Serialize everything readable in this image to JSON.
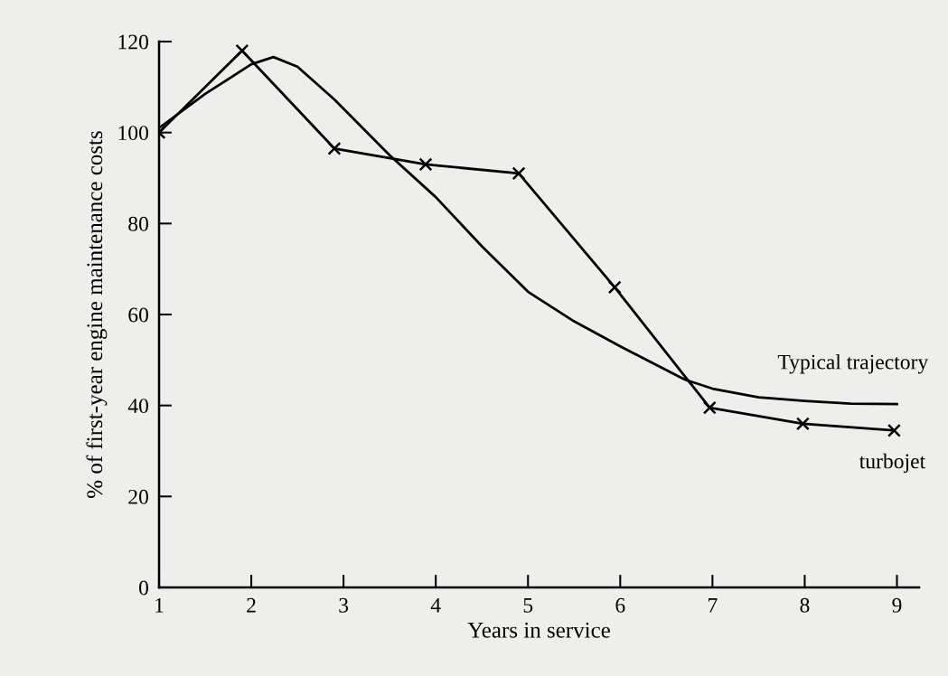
{
  "chart_data": {
    "type": "line",
    "xlabel": "Years in service",
    "ylabel": "% of first-year engine maintenance costs",
    "xlim": [
      1,
      9.24
    ],
    "xticks": [
      1,
      2,
      3,
      4,
      5,
      6,
      7,
      8,
      9
    ],
    "ylim": [
      0,
      120
    ],
    "yticks": [
      0,
      20,
      40,
      60,
      80,
      100,
      120
    ],
    "grid": false,
    "legend": false,
    "line_style": "solid",
    "series": [
      {
        "name": "Typical trajectory",
        "color": "#000000",
        "marker": "none",
        "x": [
          1,
          1.5,
          2,
          2.24,
          2.5,
          2.9,
          3.5,
          4,
          4.5,
          5,
          5.5,
          6,
          6.7,
          7,
          7.5,
          8,
          8.5,
          9
        ],
        "values": [
          101,
          108.5,
          115,
          116.6,
          114.5,
          107.3,
          95,
          85.8,
          75,
          65,
          58.5,
          53,
          45.7,
          43.7,
          41.8,
          41,
          40.4,
          40.3
        ]
      },
      {
        "name": "turbojet",
        "color": "#000000",
        "marker": "cross",
        "x": [
          1,
          1.9,
          2.9,
          3.89,
          4.9,
          5.94,
          6.97,
          7.98,
          8.97
        ],
        "values": [
          100,
          118,
          96.5,
          93,
          91,
          66,
          39.5,
          36,
          34.5
        ]
      }
    ]
  }
}
